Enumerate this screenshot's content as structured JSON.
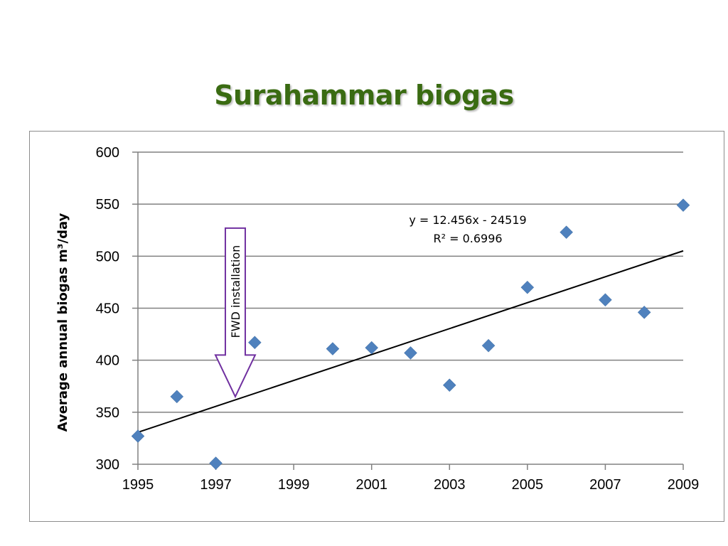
{
  "slide": {
    "title": "Surahammar biogas"
  },
  "chart_data": {
    "type": "scatter",
    "title": "",
    "xlabel": "",
    "ylabel": "Average annual biogas m³/day",
    "xlim": [
      1995,
      2009
    ],
    "ylim": [
      300,
      600
    ],
    "x_ticks": [
      1995,
      1997,
      1999,
      2001,
      2003,
      2005,
      2007,
      2009
    ],
    "y_ticks": [
      300,
      350,
      400,
      450,
      500,
      550,
      600
    ],
    "grid": "horizontal",
    "marker_color": "#4f81bd",
    "points": [
      {
        "x": 1995,
        "y": 327
      },
      {
        "x": 1996,
        "y": 365
      },
      {
        "x": 1997,
        "y": 301
      },
      {
        "x": 1998,
        "y": 417
      },
      {
        "x": 2000,
        "y": 411
      },
      {
        "x": 2001,
        "y": 412
      },
      {
        "x": 2002,
        "y": 407
      },
      {
        "x": 2003,
        "y": 376
      },
      {
        "x": 2004,
        "y": 414
      },
      {
        "x": 2005,
        "y": 470
      },
      {
        "x": 2006,
        "y": 523
      },
      {
        "x": 2007,
        "y": 458
      },
      {
        "x": 2008,
        "y": 446
      },
      {
        "x": 2009,
        "y": 549
      }
    ],
    "trendline": {
      "slope": 12.456,
      "intercept": -24519,
      "equation": "y = 12.456x - 24519",
      "r_squared": "R² = 0.6996"
    },
    "annotation": {
      "text": "FWD installation",
      "x": 1997.5,
      "y_top": 527,
      "y_tip": 365,
      "color": "#7030a0"
    }
  }
}
